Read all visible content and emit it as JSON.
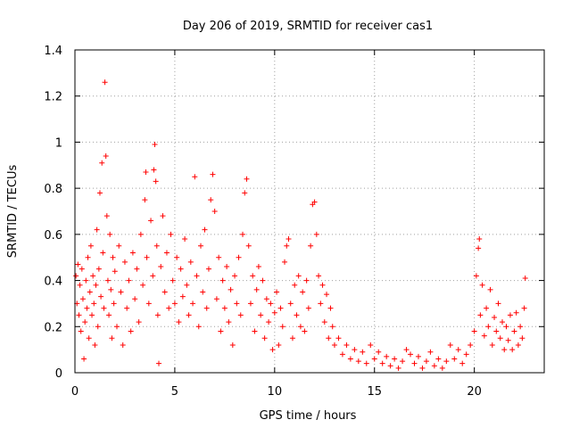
{
  "chart_data": {
    "type": "scatter",
    "title": "Day 206 of 2019, SRMTID for receiver cas1",
    "xlabel": "GPS time / hours",
    "ylabel": "SRMTID / TECUs",
    "xlim": [
      0,
      23.5
    ],
    "ylim": [
      0,
      1.4
    ],
    "grid": true,
    "marker": "+",
    "color": "#ff0000",
    "x_ticks": [
      {
        "value": 0,
        "label": "0"
      },
      {
        "value": 5,
        "label": "5"
      },
      {
        "value": 10,
        "label": "10"
      },
      {
        "value": 15,
        "label": "15"
      },
      {
        "value": 20,
        "label": "20"
      }
    ],
    "y_ticks": [
      {
        "value": 0,
        "label": "0"
      },
      {
        "value": 0.2,
        "label": "0.2"
      },
      {
        "value": 0.4,
        "label": "0.4"
      },
      {
        "value": 0.6,
        "label": "0.6"
      },
      {
        "value": 0.8,
        "label": "0.8"
      },
      {
        "value": 1.0,
        "label": "1"
      },
      {
        "value": 1.2,
        "label": "1.2"
      },
      {
        "value": 1.4,
        "label": "1.4"
      }
    ],
    "series": [
      {
        "name": "SRMTID",
        "points": [
          [
            0.05,
            0.42
          ],
          [
            0.1,
            0.3
          ],
          [
            0.15,
            0.47
          ],
          [
            0.2,
            0.25
          ],
          [
            0.25,
            0.38
          ],
          [
            0.3,
            0.18
          ],
          [
            0.35,
            0.45
          ],
          [
            0.4,
            0.32
          ],
          [
            0.45,
            0.06
          ],
          [
            0.5,
            0.22
          ],
          [
            0.55,
            0.4
          ],
          [
            0.6,
            0.28
          ],
          [
            0.65,
            0.5
          ],
          [
            0.7,
            0.15
          ],
          [
            0.75,
            0.35
          ],
          [
            0.8,
            0.55
          ],
          [
            0.85,
            0.25
          ],
          [
            0.9,
            0.42
          ],
          [
            0.95,
            0.3
          ],
          [
            1.0,
            0.12
          ],
          [
            1.05,
            0.38
          ],
          [
            1.1,
            0.62
          ],
          [
            1.15,
            0.2
          ],
          [
            1.2,
            0.45
          ],
          [
            1.25,
            0.78
          ],
          [
            1.3,
            0.33
          ],
          [
            1.35,
            0.91
          ],
          [
            1.4,
            0.52
          ],
          [
            1.45,
            0.28
          ],
          [
            1.5,
            1.26
          ],
          [
            1.55,
            0.94
          ],
          [
            1.6,
            0.68
          ],
          [
            1.65,
            0.4
          ],
          [
            1.7,
            0.25
          ],
          [
            1.75,
            0.6
          ],
          [
            1.8,
            0.36
          ],
          [
            1.85,
            0.15
          ],
          [
            1.9,
            0.5
          ],
          [
            1.95,
            0.3
          ],
          [
            2.0,
            0.44
          ],
          [
            2.1,
            0.2
          ],
          [
            2.2,
            0.55
          ],
          [
            2.3,
            0.35
          ],
          [
            2.4,
            0.12
          ],
          [
            2.5,
            0.48
          ],
          [
            2.6,
            0.28
          ],
          [
            2.7,
            0.4
          ],
          [
            2.8,
            0.18
          ],
          [
            2.9,
            0.52
          ],
          [
            3.0,
            0.32
          ],
          [
            3.1,
            0.45
          ],
          [
            3.2,
            0.22
          ],
          [
            3.3,
            0.6
          ],
          [
            3.4,
            0.38
          ],
          [
            3.5,
            0.75
          ],
          [
            3.55,
            0.87
          ],
          [
            3.6,
            0.5
          ],
          [
            3.7,
            0.3
          ],
          [
            3.8,
            0.66
          ],
          [
            3.9,
            0.42
          ],
          [
            3.95,
            0.88
          ],
          [
            4.0,
            0.99
          ],
          [
            4.05,
            0.83
          ],
          [
            4.1,
            0.55
          ],
          [
            4.15,
            0.25
          ],
          [
            4.2,
            0.04
          ],
          [
            4.3,
            0.46
          ],
          [
            4.4,
            0.68
          ],
          [
            4.5,
            0.35
          ],
          [
            4.6,
            0.52
          ],
          [
            4.7,
            0.28
          ],
          [
            4.8,
            0.6
          ],
          [
            4.9,
            0.4
          ],
          [
            5.0,
            0.3
          ],
          [
            5.1,
            0.5
          ],
          [
            5.2,
            0.22
          ],
          [
            5.3,
            0.45
          ],
          [
            5.4,
            0.33
          ],
          [
            5.5,
            0.58
          ],
          [
            5.6,
            0.38
          ],
          [
            5.7,
            0.25
          ],
          [
            5.8,
            0.48
          ],
          [
            5.9,
            0.3
          ],
          [
            6.0,
            0.85
          ],
          [
            6.1,
            0.42
          ],
          [
            6.2,
            0.2
          ],
          [
            6.3,
            0.55
          ],
          [
            6.4,
            0.35
          ],
          [
            6.5,
            0.62
          ],
          [
            6.6,
            0.28
          ],
          [
            6.7,
            0.45
          ],
          [
            6.8,
            0.75
          ],
          [
            6.9,
            0.86
          ],
          [
            7.0,
            0.7
          ],
          [
            7.1,
            0.32
          ],
          [
            7.2,
            0.5
          ],
          [
            7.3,
            0.18
          ],
          [
            7.4,
            0.4
          ],
          [
            7.5,
            0.28
          ],
          [
            7.6,
            0.46
          ],
          [
            7.7,
            0.22
          ],
          [
            7.8,
            0.36
          ],
          [
            7.9,
            0.12
          ],
          [
            8.0,
            0.42
          ],
          [
            8.1,
            0.3
          ],
          [
            8.2,
            0.5
          ],
          [
            8.3,
            0.25
          ],
          [
            8.4,
            0.6
          ],
          [
            8.5,
            0.78
          ],
          [
            8.6,
            0.84
          ],
          [
            8.7,
            0.55
          ],
          [
            8.8,
            0.3
          ],
          [
            8.9,
            0.42
          ],
          [
            9.0,
            0.18
          ],
          [
            9.1,
            0.36
          ],
          [
            9.2,
            0.46
          ],
          [
            9.3,
            0.25
          ],
          [
            9.4,
            0.4
          ],
          [
            9.5,
            0.15
          ],
          [
            9.6,
            0.32
          ],
          [
            9.7,
            0.22
          ],
          [
            9.8,
            0.3
          ],
          [
            9.9,
            0.1
          ],
          [
            10.0,
            0.26
          ],
          [
            10.1,
            0.35
          ],
          [
            10.2,
            0.12
          ],
          [
            10.3,
            0.28
          ],
          [
            10.4,
            0.2
          ],
          [
            10.5,
            0.48
          ],
          [
            10.6,
            0.55
          ],
          [
            10.7,
            0.58
          ],
          [
            10.8,
            0.3
          ],
          [
            10.9,
            0.15
          ],
          [
            11.0,
            0.38
          ],
          [
            11.1,
            0.25
          ],
          [
            11.2,
            0.42
          ],
          [
            11.3,
            0.2
          ],
          [
            11.4,
            0.35
          ],
          [
            11.5,
            0.18
          ],
          [
            11.6,
            0.4
          ],
          [
            11.7,
            0.28
          ],
          [
            11.8,
            0.55
          ],
          [
            11.9,
            0.73
          ],
          [
            12.0,
            0.74
          ],
          [
            12.1,
            0.6
          ],
          [
            12.2,
            0.42
          ],
          [
            12.3,
            0.3
          ],
          [
            12.4,
            0.38
          ],
          [
            12.5,
            0.22
          ],
          [
            12.6,
            0.34
          ],
          [
            12.7,
            0.15
          ],
          [
            12.8,
            0.28
          ],
          [
            12.9,
            0.2
          ],
          [
            13.0,
            0.12
          ],
          [
            13.2,
            0.15
          ],
          [
            13.4,
            0.08
          ],
          [
            13.6,
            0.12
          ],
          [
            13.8,
            0.06
          ],
          [
            14.0,
            0.1
          ],
          [
            14.2,
            0.05
          ],
          [
            14.4,
            0.09
          ],
          [
            14.6,
            0.04
          ],
          [
            14.8,
            0.12
          ],
          [
            15.0,
            0.06
          ],
          [
            15.2,
            0.09
          ],
          [
            15.4,
            0.04
          ],
          [
            15.6,
            0.07
          ],
          [
            15.8,
            0.03
          ],
          [
            16.0,
            0.06
          ],
          [
            16.2,
            0.02
          ],
          [
            16.4,
            0.05
          ],
          [
            16.6,
            0.1
          ],
          [
            16.8,
            0.08
          ],
          [
            17.0,
            0.04
          ],
          [
            17.2,
            0.07
          ],
          [
            17.4,
            0.02
          ],
          [
            17.6,
            0.05
          ],
          [
            17.8,
            0.09
          ],
          [
            18.0,
            0.03
          ],
          [
            18.2,
            0.06
          ],
          [
            18.4,
            0.02
          ],
          [
            18.6,
            0.05
          ],
          [
            18.8,
            0.12
          ],
          [
            19.0,
            0.06
          ],
          [
            19.2,
            0.1
          ],
          [
            19.4,
            0.04
          ],
          [
            19.6,
            0.08
          ],
          [
            19.8,
            0.12
          ],
          [
            20.0,
            0.18
          ],
          [
            20.1,
            0.42
          ],
          [
            20.2,
            0.54
          ],
          [
            20.25,
            0.58
          ],
          [
            20.3,
            0.25
          ],
          [
            20.4,
            0.38
          ],
          [
            20.5,
            0.16
          ],
          [
            20.6,
            0.28
          ],
          [
            20.7,
            0.2
          ],
          [
            20.8,
            0.36
          ],
          [
            20.9,
            0.12
          ],
          [
            21.0,
            0.24
          ],
          [
            21.1,
            0.18
          ],
          [
            21.2,
            0.3
          ],
          [
            21.3,
            0.15
          ],
          [
            21.4,
            0.22
          ],
          [
            21.5,
            0.1
          ],
          [
            21.6,
            0.2
          ],
          [
            21.7,
            0.14
          ],
          [
            21.8,
            0.25
          ],
          [
            21.9,
            0.1
          ],
          [
            22.0,
            0.18
          ],
          [
            22.1,
            0.26
          ],
          [
            22.2,
            0.12
          ],
          [
            22.3,
            0.2
          ],
          [
            22.4,
            0.15
          ],
          [
            22.5,
            0.28
          ],
          [
            22.55,
            0.41
          ]
        ]
      }
    ]
  }
}
